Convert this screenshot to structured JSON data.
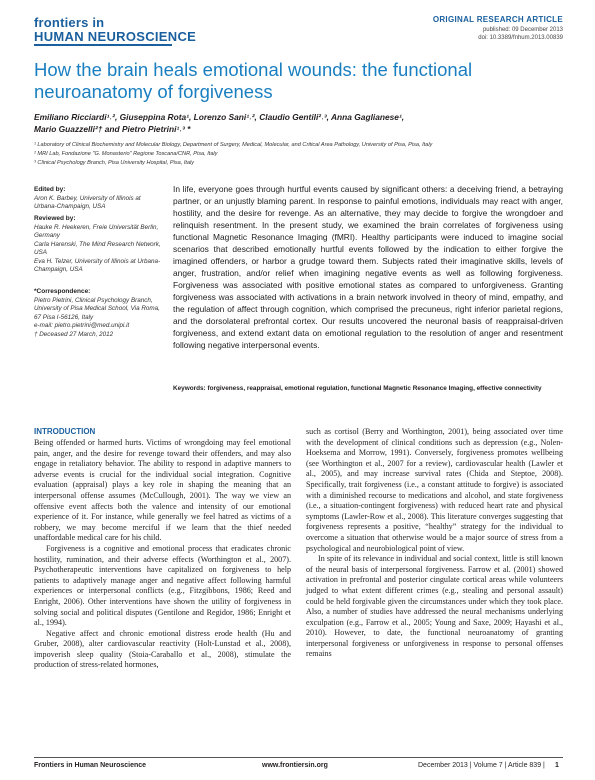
{
  "header": {
    "logo_line1": "frontiers in",
    "logo_line2": "HUMAN NEUROSCIENCE",
    "article_type": "ORIGINAL RESEARCH ARTICLE",
    "published": "published: 09 December 2013",
    "doi": "doi: 10.3389/fnhum.2013.00839"
  },
  "title": "How the brain heals emotional wounds: the functional neuroanatomy of forgiveness",
  "authors_line1": "Emiliano Ricciardi¹˒², Giuseppina Rota¹, Lorenzo Sani¹˒², Claudio Gentili²˒³, Anna Gaglianese¹,",
  "authors_line2": "Mario Guazzelli²† and Pietro Pietrini¹˒³ *",
  "affiliations": [
    "¹ Laboratory of Clinical Biochemistry and Molecular Biology, Department of Surgery, Medical, Molecular, and Critical Area Pathology, University of Pisa, Pisa, Italy",
    "² MRI Lab, Fondazione \"G. Monasterio\" Regione Toscana/CNR, Pisa, Italy",
    "³ Clinical Psychology Branch, Pisa University Hospital, Pisa, Italy"
  ],
  "sidebar": {
    "edited_by_h": "Edited by:",
    "edited_by": "Aron K. Barbey, University of Illinois at Urbana-Champaign, USA",
    "reviewed_by_h": "Reviewed by:",
    "reviewers": [
      "Hauke R. Heekeren, Freie Universität Berlin, Germany",
      "Carla Harenski, The Mind Research Network, USA",
      "Eva H. Telzer, University of Illinois at Urbana-Champaign, USA"
    ],
    "correspondence_h": "*Correspondence:",
    "correspondence": "Pietro Pietrini, Clinical Psychology Branch, University of Pisa Medical School, Via Roma, 67 Pisa I-56126, Italy",
    "email": "e-mail: pietro.pietrini@med.unipi.it",
    "deceased": "† Deceased 27 March, 2012"
  },
  "abstract": "In life, everyone goes through hurtful events caused by significant others: a deceiving friend, a betraying partner, or an unjustly blaming parent. In response to painful emotions, individuals may react with anger, hostility, and the desire for revenge. As an alternative, they may decide to forgive the wrongdoer and relinquish resentment. In the present study, we examined the brain correlates of forgiveness using functional Magnetic Resonance Imaging (fMRI). Healthy participants were induced to imagine social scenarios that described emotionally hurtful events followed by the indication to either forgive the imagined offenders, or harbor a grudge toward them. Subjects rated their imaginative skills, levels of anger, frustration, and/or relief when imagining negative events as well as following forgiveness. Forgiveness was associated with positive emotional states as compared to unforgiveness. Granting forgiveness was associated with activations in a brain network involved in theory of mind, empathy, and the regulation of affect through cognition, which comprised the precuneus, right inferior parietal regions, and the dorsolateral prefrontal cortex. Our results uncovered the neuronal basis of reappraisal-driven forgiveness, and extend extant data on emotional regulation to the resolution of anger and resentment following negative interpersonal events.",
  "keywords": "Keywords: forgiveness, reappraisal, emotional regulation, functional Magnetic Resonance Imaging, effective connectivity",
  "intro_heading": "INTRODUCTION",
  "left_col": [
    "Being offended or harmed hurts. Victims of wrongdoing may feel emotional pain, anger, and the desire for revenge toward their offenders, and may also engage in retaliatory behavior. The ability to respond in adaptive manners to adverse events is crucial for the individual social integration. Cognitive evaluation (appraisal) plays a key role in shaping the meaning that an interpersonal offense assumes (McCullough, 2001). The way we view an offensive event affects both the valence and intensity of our emotional experience of it. For instance, while generally we feel hatred as victims of a robbery, we may become merciful if we learn that the thief needed unaffordable medical care for his child.",
    "Forgiveness is a cognitive and emotional process that eradicates chronic hostility, rumination, and their adverse effects (Worthington et al., 2007). Psychotherapeutic interventions have capitalized on forgiveness to help patients to adaptively manage anger and negative affect following harmful experiences or interpersonal conflicts (e.g., Fitzgibbons, 1986; Reed and Enright, 2006). Other interventions have shown the utility of forgiveness in solving social and political disputes (Gentilone and Regidor, 1986; Enright et al., 1994).",
    "Negative affect and chronic emotional distress erode health (Hu and Gruber, 2008), alter cardiovascular reactivity (Holt-Lunstad et al., 2008), impoverish sleep quality (Stoia-Caraballo et al., 2008), stimulate the production of stress-related hormones,"
  ],
  "right_col": [
    "such as cortisol (Berry and Worthington, 2001), being associated over time with the development of clinical conditions such as depression (e.g., Nolen-Hoeksema and Morrow, 1991). Conversely, forgiveness promotes wellbeing (see Worthington et al., 2007 for a review), cardiovascular health (Lawler et al., 2005), and may increase survival rates (Chida and Steptoe, 2008). Specifically, trait forgiveness (i.e., a constant attitude to forgive) is associated with a diminished recourse to medications and alcohol, and state forgiveness (i.e., a situation-contingent forgiveness) with reduced heart rate and physical symptoms (Lawler-Row et al., 2008). This literature converges suggesting that forgiveness represents a positive, “healthy” strategy for the individual to overcome a situation that otherwise would be a major source of stress from a psychological and neurobiological point of view.",
    "In spite of its relevance in individual and social context, little is still known of the neural basis of interpersonal forgiveness. Farrow et al. (2001) showed activation in prefrontal and posterior cingulate cortical areas while volunteers judged to what extent different crimes (e.g., stealing and personal assault) could be held forgivable given the circumstances under which they took place. Also, a number of studies have addressed the neural mechanisms underlying exculpation (e.g., Farrow et al., 2005; Young and Saxe, 2009; Hayashi et al., 2010). However, to date, the functional neuroanatomy of granting interpersonal forgiveness or unforgiveness in response to personal offenses remains"
  ],
  "footer": {
    "journal": "Frontiers in Human Neuroscience",
    "url": "www.frontiersin.org",
    "issue": "December 2013 | Volume 7 | Article 839 |",
    "page": "1"
  }
}
